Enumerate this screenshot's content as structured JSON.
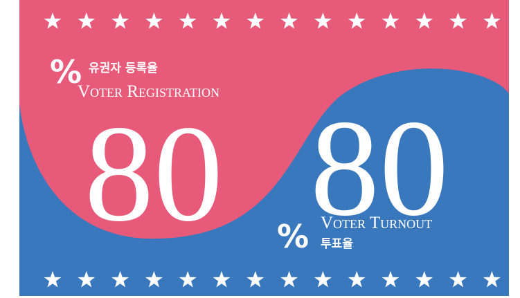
{
  "registration": {
    "unit": "%",
    "label_ko": "유권자 등록율",
    "label_en": "Voter Registration",
    "value": 80
  },
  "turnout": {
    "unit": "%",
    "label_en": "Voter Turnout",
    "label_ko": "투표율",
    "value": 80
  }
}
